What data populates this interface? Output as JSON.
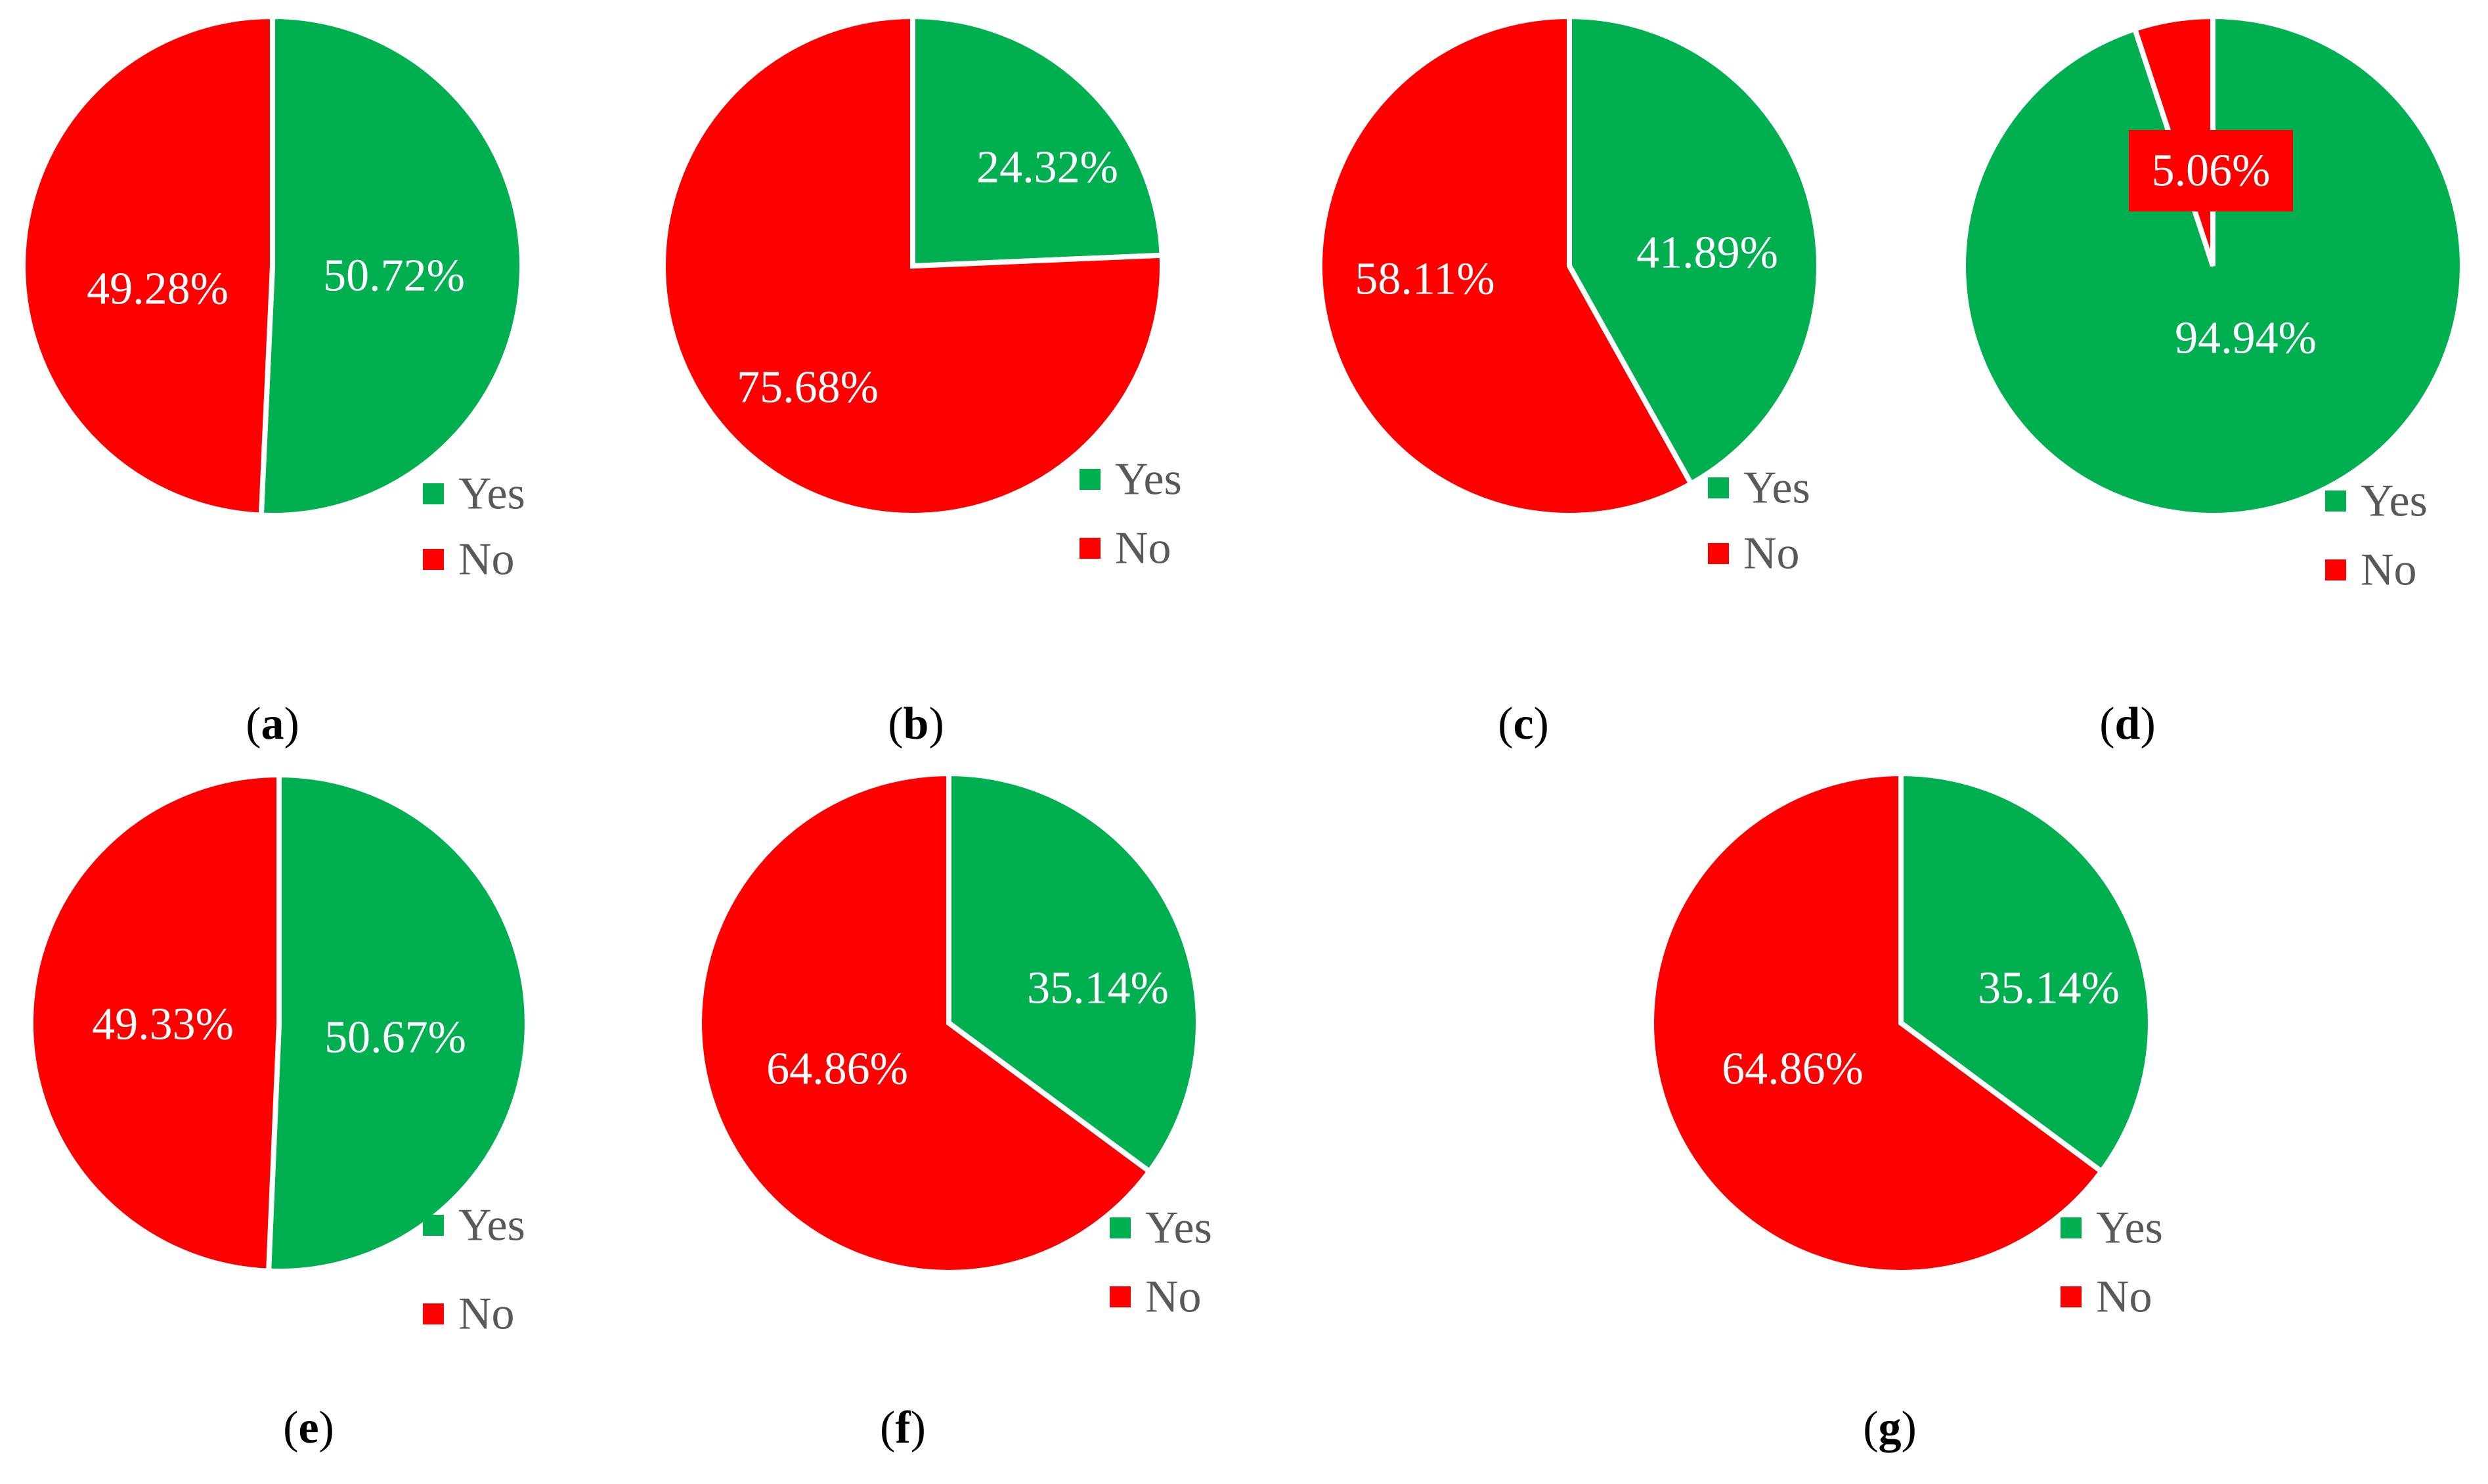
{
  "colors": {
    "yes": "#00B050",
    "no": "#FF0000",
    "label_text": "#FFFFFF",
    "legend_text": "#595959",
    "caption_text": "#000000",
    "background": "#FFFFFF"
  },
  "chart_data": [
    {
      "type": "pie",
      "panel": "a",
      "slices": [
        {
          "name": "Yes",
          "value": 50.72,
          "label": "50.72%"
        },
        {
          "name": "No",
          "value": 49.28,
          "label": "49.28%"
        }
      ],
      "legend": [
        "Yes",
        "No"
      ],
      "legend_position": "bottom-right"
    },
    {
      "type": "pie",
      "panel": "b",
      "slices": [
        {
          "name": "Yes",
          "value": 24.32,
          "label": "24.32%"
        },
        {
          "name": "No",
          "value": 75.68,
          "label": "75.68%"
        }
      ],
      "legend": [
        "Yes",
        "No"
      ],
      "legend_position": "bottom-right"
    },
    {
      "type": "pie",
      "panel": "c",
      "slices": [
        {
          "name": "Yes",
          "value": 41.89,
          "label": "41.89%"
        },
        {
          "name": "No",
          "value": 58.11,
          "label": "58.11%"
        }
      ],
      "legend": [
        "Yes",
        "No"
      ],
      "legend_position": "bottom-right"
    },
    {
      "type": "pie",
      "panel": "d",
      "slices": [
        {
          "name": "Yes",
          "value": 94.94,
          "label": "94.94%"
        },
        {
          "name": "No",
          "value": 5.06,
          "label": "5.06%"
        }
      ],
      "legend": [
        "Yes",
        "No"
      ],
      "legend_position": "bottom-right"
    },
    {
      "type": "pie",
      "panel": "e",
      "slices": [
        {
          "name": "Yes",
          "value": 50.67,
          "label": "50.67%"
        },
        {
          "name": "No",
          "value": 49.33,
          "label": "49.33%"
        }
      ],
      "legend": [
        "Yes",
        "No"
      ],
      "legend_position": "bottom-right"
    },
    {
      "type": "pie",
      "panel": "f",
      "slices": [
        {
          "name": "Yes",
          "value": 35.14,
          "label": "35.14%"
        },
        {
          "name": "No",
          "value": 64.86,
          "label": "64.86%"
        }
      ],
      "legend": [
        "Yes",
        "No"
      ],
      "legend_position": "bottom-right"
    },
    {
      "type": "pie",
      "panel": "g",
      "slices": [
        {
          "name": "Yes",
          "value": 35.14,
          "label": "35.14%"
        },
        {
          "name": "No",
          "value": 64.86,
          "label": "64.86%"
        }
      ],
      "legend": [
        "Yes",
        "No"
      ],
      "legend_position": "bottom-right"
    }
  ]
}
